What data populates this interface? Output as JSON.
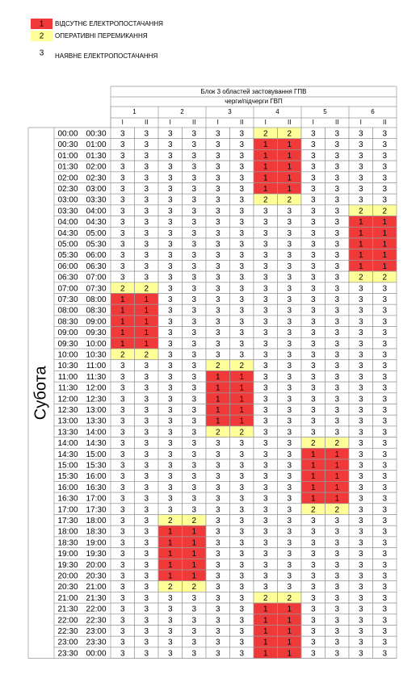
{
  "legend": [
    {
      "value": 1,
      "label": "ВІДСУТНЄ ЕЛЕКТРОПОСТАЧАННЯ",
      "color": "#f03a3a"
    },
    {
      "value": 2,
      "label": "ОПЕРАТИВНІ ПЕРЕМИКАННЯ",
      "color": "#ffff99"
    },
    {
      "value": 3,
      "label": "НАЯВНЕ ЕЛЕКТРОПОСТАЧАННЯ",
      "color": "#ffffff"
    }
  ],
  "table": {
    "title": "Блок 3 областей застовування ГПВ",
    "subtitle": "черги/підчерги ГВП",
    "day": "Субота",
    "groups": [
      {
        "label": 1,
        "subgroups": [
          "I",
          "II"
        ]
      },
      {
        "label": 2,
        "subgroups": [
          "I",
          "II"
        ]
      },
      {
        "label": 3,
        "subgroups": [
          "I",
          "II"
        ]
      },
      {
        "label": 4,
        "subgroups": [
          "I",
          "II"
        ]
      },
      {
        "label": 5,
        "subgroups": [
          "I",
          "II"
        ]
      },
      {
        "label": 6,
        "subgroups": [
          "I",
          "II"
        ]
      }
    ],
    "rows": [
      {
        "from": "00:00",
        "to": "00:30",
        "values": [
          3,
          3,
          3,
          3,
          3,
          3,
          2,
          2,
          3,
          3,
          3,
          3
        ]
      },
      {
        "from": "00:30",
        "to": "01:00",
        "values": [
          3,
          3,
          3,
          3,
          3,
          3,
          1,
          1,
          3,
          3,
          3,
          3
        ]
      },
      {
        "from": "01:00",
        "to": "01:30",
        "values": [
          3,
          3,
          3,
          3,
          3,
          3,
          1,
          1,
          3,
          3,
          3,
          3
        ]
      },
      {
        "from": "01:30",
        "to": "02:00",
        "values": [
          3,
          3,
          3,
          3,
          3,
          3,
          1,
          1,
          3,
          3,
          3,
          3
        ]
      },
      {
        "from": "02:00",
        "to": "02:30",
        "values": [
          3,
          3,
          3,
          3,
          3,
          3,
          1,
          1,
          3,
          3,
          3,
          3
        ]
      },
      {
        "from": "02:30",
        "to": "03:00",
        "values": [
          3,
          3,
          3,
          3,
          3,
          3,
          1,
          1,
          3,
          3,
          3,
          3
        ]
      },
      {
        "from": "03:00",
        "to": "03:30",
        "values": [
          3,
          3,
          3,
          3,
          3,
          3,
          2,
          2,
          3,
          3,
          3,
          3
        ]
      },
      {
        "from": "03:30",
        "to": "04:00",
        "values": [
          3,
          3,
          3,
          3,
          3,
          3,
          3,
          3,
          3,
          3,
          2,
          2
        ]
      },
      {
        "from": "04:00",
        "to": "04:30",
        "values": [
          3,
          3,
          3,
          3,
          3,
          3,
          3,
          3,
          3,
          3,
          1,
          1
        ]
      },
      {
        "from": "04:30",
        "to": "05:00",
        "values": [
          3,
          3,
          3,
          3,
          3,
          3,
          3,
          3,
          3,
          3,
          1,
          1
        ]
      },
      {
        "from": "05:00",
        "to": "05:30",
        "values": [
          3,
          3,
          3,
          3,
          3,
          3,
          3,
          3,
          3,
          3,
          1,
          1
        ]
      },
      {
        "from": "05:30",
        "to": "06:00",
        "values": [
          3,
          3,
          3,
          3,
          3,
          3,
          3,
          3,
          3,
          3,
          1,
          1
        ]
      },
      {
        "from": "06:00",
        "to": "06:30",
        "values": [
          3,
          3,
          3,
          3,
          3,
          3,
          3,
          3,
          3,
          3,
          1,
          1
        ]
      },
      {
        "from": "06:30",
        "to": "07:00",
        "values": [
          3,
          3,
          3,
          3,
          3,
          3,
          3,
          3,
          3,
          3,
          2,
          2
        ]
      },
      {
        "from": "07:00",
        "to": "07:30",
        "values": [
          2,
          2,
          3,
          3,
          3,
          3,
          3,
          3,
          3,
          3,
          3,
          3
        ]
      },
      {
        "from": "07:30",
        "to": "08:00",
        "values": [
          1,
          1,
          3,
          3,
          3,
          3,
          3,
          3,
          3,
          3,
          3,
          3
        ]
      },
      {
        "from": "08:00",
        "to": "08:30",
        "values": [
          1,
          1,
          3,
          3,
          3,
          3,
          3,
          3,
          3,
          3,
          3,
          3
        ]
      },
      {
        "from": "08:30",
        "to": "09:00",
        "values": [
          1,
          1,
          3,
          3,
          3,
          3,
          3,
          3,
          3,
          3,
          3,
          3
        ]
      },
      {
        "from": "09:00",
        "to": "09:30",
        "values": [
          1,
          1,
          3,
          3,
          3,
          3,
          3,
          3,
          3,
          3,
          3,
          3
        ]
      },
      {
        "from": "09:30",
        "to": "10:00",
        "values": [
          1,
          1,
          3,
          3,
          3,
          3,
          3,
          3,
          3,
          3,
          3,
          3
        ]
      },
      {
        "from": "10:00",
        "to": "10:30",
        "values": [
          2,
          2,
          3,
          3,
          3,
          3,
          3,
          3,
          3,
          3,
          3,
          3
        ]
      },
      {
        "from": "10:30",
        "to": "11:00",
        "values": [
          3,
          3,
          3,
          3,
          2,
          2,
          3,
          3,
          3,
          3,
          3,
          3
        ]
      },
      {
        "from": "11:00",
        "to": "11:30",
        "values": [
          3,
          3,
          3,
          3,
          1,
          1,
          3,
          3,
          3,
          3,
          3,
          3
        ]
      },
      {
        "from": "11:30",
        "to": "12:00",
        "values": [
          3,
          3,
          3,
          3,
          1,
          1,
          3,
          3,
          3,
          3,
          3,
          3
        ]
      },
      {
        "from": "12:00",
        "to": "12:30",
        "values": [
          3,
          3,
          3,
          3,
          1,
          1,
          3,
          3,
          3,
          3,
          3,
          3
        ]
      },
      {
        "from": "12:30",
        "to": "13:00",
        "values": [
          3,
          3,
          3,
          3,
          1,
          1,
          3,
          3,
          3,
          3,
          3,
          3
        ]
      },
      {
        "from": "13:00",
        "to": "13:30",
        "values": [
          3,
          3,
          3,
          3,
          1,
          1,
          3,
          3,
          3,
          3,
          3,
          3
        ]
      },
      {
        "from": "13:30",
        "to": "14:00",
        "values": [
          3,
          3,
          3,
          3,
          2,
          2,
          3,
          3,
          3,
          3,
          3,
          3
        ]
      },
      {
        "from": "14:00",
        "to": "14:30",
        "values": [
          3,
          3,
          3,
          3,
          3,
          3,
          3,
          3,
          2,
          2,
          3,
          3
        ]
      },
      {
        "from": "14:30",
        "to": "15:00",
        "values": [
          3,
          3,
          3,
          3,
          3,
          3,
          3,
          3,
          1,
          1,
          3,
          3
        ]
      },
      {
        "from": "15:00",
        "to": "15:30",
        "values": [
          3,
          3,
          3,
          3,
          3,
          3,
          3,
          3,
          1,
          1,
          3,
          3
        ]
      },
      {
        "from": "15:30",
        "to": "16:00",
        "values": [
          3,
          3,
          3,
          3,
          3,
          3,
          3,
          3,
          1,
          1,
          3,
          3
        ]
      },
      {
        "from": "16:00",
        "to": "16:30",
        "values": [
          3,
          3,
          3,
          3,
          3,
          3,
          3,
          3,
          1,
          1,
          3,
          3
        ]
      },
      {
        "from": "16:30",
        "to": "17:00",
        "values": [
          3,
          3,
          3,
          3,
          3,
          3,
          3,
          3,
          1,
          1,
          3,
          3
        ]
      },
      {
        "from": "17:00",
        "to": "17:30",
        "values": [
          3,
          3,
          3,
          3,
          3,
          3,
          3,
          3,
          2,
          2,
          3,
          3
        ]
      },
      {
        "from": "17:30",
        "to": "18:00",
        "values": [
          3,
          3,
          2,
          2,
          3,
          3,
          3,
          3,
          3,
          3,
          3,
          3
        ]
      },
      {
        "from": "18:00",
        "to": "18:30",
        "values": [
          3,
          3,
          1,
          1,
          3,
          3,
          3,
          3,
          3,
          3,
          3,
          3
        ]
      },
      {
        "from": "18:30",
        "to": "19:00",
        "values": [
          3,
          3,
          1,
          1,
          3,
          3,
          3,
          3,
          3,
          3,
          3,
          3
        ]
      },
      {
        "from": "19:00",
        "to": "19:30",
        "values": [
          3,
          3,
          1,
          1,
          3,
          3,
          3,
          3,
          3,
          3,
          3,
          3
        ]
      },
      {
        "from": "19:30",
        "to": "20:00",
        "values": [
          3,
          3,
          1,
          1,
          3,
          3,
          3,
          3,
          3,
          3,
          3,
          3
        ]
      },
      {
        "from": "20:00",
        "to": "20:30",
        "values": [
          3,
          3,
          1,
          1,
          3,
          3,
          3,
          3,
          3,
          3,
          3,
          3
        ]
      },
      {
        "from": "20:30",
        "to": "21:00",
        "values": [
          3,
          3,
          2,
          2,
          3,
          3,
          3,
          3,
          3,
          3,
          3,
          3
        ]
      },
      {
        "from": "21:00",
        "to": "21:30",
        "values": [
          3,
          3,
          3,
          3,
          3,
          3,
          2,
          2,
          3,
          3,
          3,
          3
        ]
      },
      {
        "from": "21:30",
        "to": "22:00",
        "values": [
          3,
          3,
          3,
          3,
          3,
          3,
          1,
          1,
          3,
          3,
          3,
          3
        ]
      },
      {
        "from": "22:00",
        "to": "22:30",
        "values": [
          3,
          3,
          3,
          3,
          3,
          3,
          1,
          1,
          3,
          3,
          3,
          3
        ]
      },
      {
        "from": "22:30",
        "to": "23:00",
        "values": [
          3,
          3,
          3,
          3,
          3,
          3,
          1,
          1,
          3,
          3,
          3,
          3
        ]
      },
      {
        "from": "23:00",
        "to": "23:30",
        "values": [
          3,
          3,
          3,
          3,
          3,
          3,
          1,
          1,
          3,
          3,
          3,
          3
        ]
      },
      {
        "from": "23:30",
        "to": "00:00",
        "values": [
          3,
          3,
          3,
          3,
          3,
          3,
          1,
          1,
          3,
          3,
          3,
          3
        ]
      }
    ]
  }
}
